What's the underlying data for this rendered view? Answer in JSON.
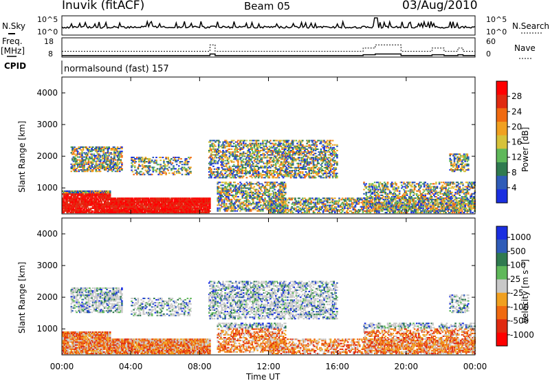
{
  "header": {
    "station": "Inuvik (fitACF)",
    "beam": "Beam 05",
    "date": "03/Aug/2010"
  },
  "noise_panel": {
    "left_label": "N.Sky",
    "right_label": "N.Search",
    "left_ticks": [
      "10^5",
      "10^0"
    ],
    "right_ticks": [
      "10^5",
      "10^0"
    ]
  },
  "freq_panel": {
    "left_label_1": "Freq.",
    "left_label_2": "[MHz]",
    "right_label": "Nave",
    "left_ticks": [
      "18",
      "8"
    ],
    "right_ticks": [
      "60",
      "0"
    ]
  },
  "cpid": {
    "label": "CPID",
    "value": "normalsound (fast) 157"
  },
  "colors": {
    "power": [
      "#1a2fe0",
      "#2f5cb8",
      "#2f7a4f",
      "#5fb85a",
      "#d6c23a",
      "#f0a020",
      "#f06a10",
      "#e02a10",
      "#ff0000"
    ],
    "velocity": [
      "#1a2fe0",
      "#2f5cb8",
      "#2f7a4f",
      "#5fb85a",
      "#c8c8c8",
      "#f0a020",
      "#f06a10",
      "#e02a10",
      "#ff0000"
    ]
  },
  "chart_data": [
    {
      "type": "line",
      "title": "",
      "ylabel": "N.Sky",
      "y2label": "N.Search",
      "xlim": [
        "00:00",
        "24:00"
      ],
      "yscale": "log"
    },
    {
      "type": "line",
      "ylabel": "Freq. [MHz]",
      "y2label": "Nave",
      "ylim": [
        8,
        18
      ],
      "y2lim": [
        0,
        60
      ],
      "series": [
        {
          "name": "Freq.",
          "x": [
            0,
            8.6,
            8.9,
            17.5,
            18.2,
            19.7,
            21.5,
            22.2,
            23.0,
            23.3
          ],
          "values": [
            8.8,
            9.6,
            8.8,
            9.2,
            9.6,
            8.8,
            9.2,
            8.8,
            9.2,
            8.8
          ]
        },
        {
          "name": "Nave",
          "x": [
            0,
            8.6,
            8.9,
            17.5,
            18.2,
            19.7,
            21.5,
            22.2,
            23.0,
            23.3
          ],
          "values": [
            18,
            38,
            18,
            28,
            38,
            18,
            28,
            18,
            28,
            18
          ]
        }
      ]
    },
    {
      "type": "heatmap",
      "ylabel": "Slant Range [km]",
      "colorbar_label": "Power [dB]",
      "colorbar_ticks": [
        "4",
        "8",
        "12",
        "16",
        "20",
        "24",
        "28"
      ],
      "yticks": [
        "1000",
        "2000",
        "3000",
        "4000"
      ],
      "ylim": [
        180,
        4500
      ],
      "xlim": [
        "00:00",
        "24:00"
      ]
    },
    {
      "type": "heatmap",
      "ylabel": "Slant Range [km]",
      "colorbar_label": "Velocity [m s⁻¹]",
      "colorbar_ticks": [
        "1000",
        "500",
        "100",
        "25",
        "-25",
        "-100",
        "-500",
        "-1000"
      ],
      "yticks": [
        "1000",
        "2000",
        "3000",
        "4000"
      ],
      "ylim": [
        180,
        4500
      ],
      "xlim": [
        "00:00",
        "24:00"
      ],
      "xticks": [
        "00:00",
        "04:00",
        "08:00",
        "12:00",
        "16:00",
        "20:00",
        "00:00"
      ],
      "xlabel": "Time UT"
    }
  ]
}
